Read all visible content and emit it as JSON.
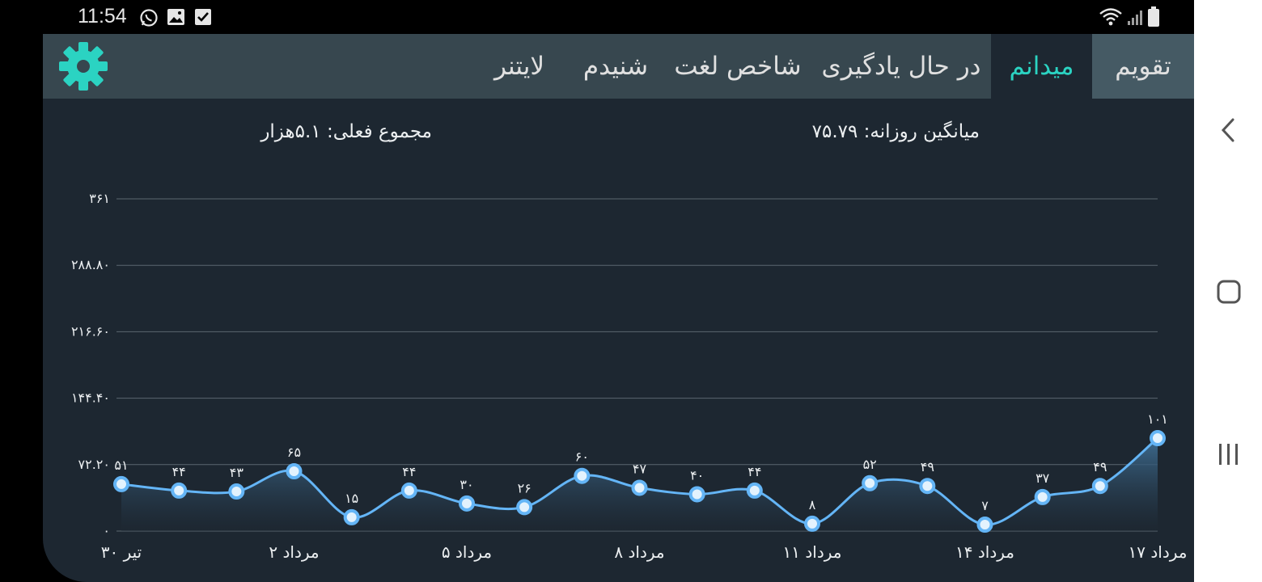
{
  "status_bar": {
    "time": "11:54",
    "icons": [
      "whatsapp-icon",
      "image-icon",
      "checkbox-icon",
      "wifi-icon",
      "signal-icon",
      "battery-icon"
    ]
  },
  "tabs": [
    {
      "label": "تقویم",
      "state": "inactive"
    },
    {
      "label": "میدانم",
      "state": "active"
    },
    {
      "label": "در حال یادگیری",
      "state": "inactive"
    },
    {
      "label": "شاخص لغت",
      "state": "inactive"
    },
    {
      "label": "شنیدم",
      "state": "inactive"
    },
    {
      "label": "لایتنر",
      "state": "inactive"
    }
  ],
  "settings_icon": "gear-icon",
  "summary": {
    "daily_average": "میانگین روزانه: ۷۵.۷۹",
    "current_total": "مجموع فعلی: ۵.۱هزار"
  },
  "nav_buttons": [
    "back-icon",
    "home-icon",
    "recents-icon"
  ],
  "colors": {
    "accent": "#2bd3c2",
    "background": "#1d2731",
    "tabbar": "#37474f",
    "line": "#64b5f6"
  },
  "chart_data": {
    "type": "area",
    "x_labels": [
      "۳۰ تیر",
      "۲ مرداد",
      "۵ مرداد",
      "۸ مرداد",
      "۱۱ مرداد",
      "۱۴ مرداد",
      "۱۷ مرداد"
    ],
    "y_tick_labels": [
      "۰",
      "۷۲.۲۰",
      "۱۴۴.۴۰",
      "۲۱۶.۶۰",
      "۲۸۸.۸۰",
      "۳۶۱"
    ],
    "y_ticks": [
      0,
      72.2,
      144.4,
      216.6,
      288.8,
      361
    ],
    "ylim": [
      0,
      361
    ],
    "grid": true,
    "values": [
      51,
      44,
      43,
      65,
      15,
      44,
      30,
      26,
      60,
      47,
      40,
      44,
      8,
      52,
      49,
      7,
      37,
      49,
      101
    ],
    "value_labels": [
      "۵۱",
      "۴۴",
      "۴۳",
      "۶۵",
      "۱۵",
      "۴۴",
      "۳۰",
      "۲۶",
      "۶۰",
      "۴۷",
      "۴۰",
      "۴۴",
      "۸",
      "۵۲",
      "۴۹",
      "۷",
      "۳۷",
      "۴۹",
      "۱۰۱"
    ]
  }
}
